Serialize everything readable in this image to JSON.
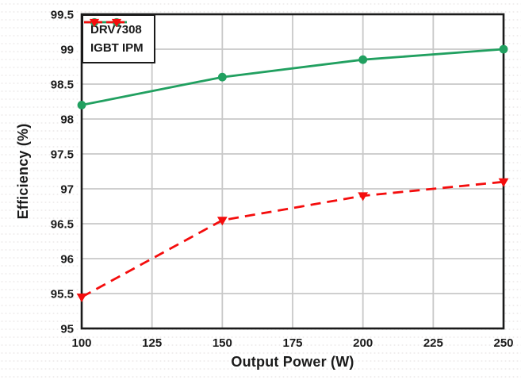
{
  "figure": {
    "background": "#ffffff"
  },
  "chart_data": {
    "type": "line",
    "title": "",
    "xlabel": "Output Power (W)",
    "ylabel": "Efficiency (%)",
    "x": [
      100,
      150,
      200,
      250
    ],
    "xlim": [
      100,
      250
    ],
    "ylim": [
      95,
      99.5
    ],
    "xticks": [
      100,
      125,
      150,
      175,
      200,
      225,
      250
    ],
    "yticks": [
      95,
      95.5,
      96,
      96.5,
      97,
      97.5,
      98,
      98.5,
      99,
      99.5
    ],
    "grid": true,
    "legend_position": "top-left",
    "series": [
      {
        "name": "DRV7308",
        "values": [
          98.2,
          98.6,
          98.85,
          99.0
        ],
        "color": "#21a060",
        "line_style": "solid",
        "marker": "circle"
      },
      {
        "name": "IGBT IPM",
        "values": [
          95.45,
          96.55,
          96.9,
          97.1
        ],
        "color": "#f40d0d",
        "line_style": "dashed",
        "marker": "triangle-down"
      }
    ],
    "colors": {
      "grid": "#c8c8c8",
      "axis_border": "#1a1a1a",
      "text": "#1a1a1a",
      "plot_background": "#ffffff"
    }
  }
}
